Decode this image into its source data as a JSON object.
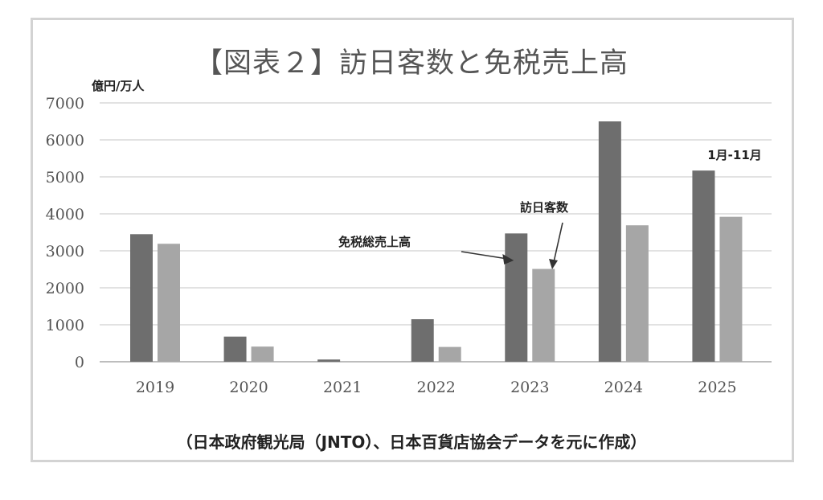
{
  "chart_data": {
    "type": "bar",
    "title": "【図表２】訪日客数と免税売上高",
    "ylabel": "億円/万人",
    "ylim": [
      0,
      7000
    ],
    "yticks": [
      0,
      1000,
      2000,
      3000,
      4000,
      5000,
      6000,
      7000
    ],
    "categories": [
      "2019",
      "2020",
      "2021",
      "2022",
      "2023",
      "2024",
      "2025"
    ],
    "grid": true,
    "series": [
      {
        "name": "免税総売上高",
        "color": "#6e6e6e",
        "values": [
          3450,
          680,
          60,
          1150,
          3470,
          6500,
          5170
        ]
      },
      {
        "name": "訪日客数",
        "color": "#a6a6a6",
        "values": [
          3190,
          410,
          0,
          400,
          2510,
          3690,
          3920
        ]
      }
    ],
    "annotations": {
      "sales_label": "免税総売上高",
      "visitors_label": "訪日客数",
      "period_label": "1月-11月"
    },
    "source": "（日本政府観光局（JNTO）、日本百貨店協会データを元に作成）"
  }
}
